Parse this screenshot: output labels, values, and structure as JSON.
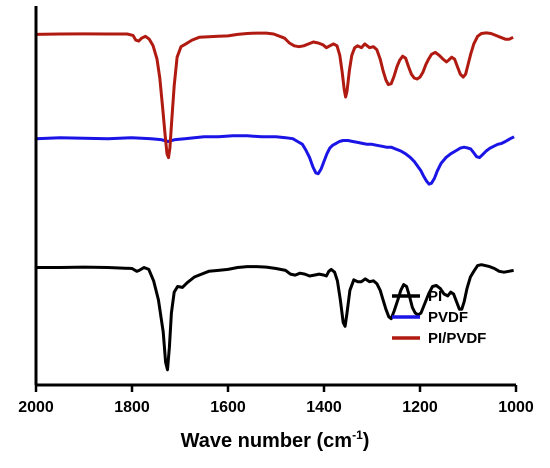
{
  "chart_data": {
    "type": "line",
    "title": "",
    "xlabel": "Wave number (cm",
    "xlabel_sup": "-1",
    "xlabel_tail": ")",
    "ylabel": "",
    "xlim": [
      2000,
      1000
    ],
    "x_reversed": true,
    "y_ticks_shown": false,
    "grid": false,
    "legend_position": "bottom-right",
    "x_ticks": [
      2000,
      1800,
      1600,
      1400,
      1200,
      1000
    ],
    "x_tick_labels": [
      "2000",
      "1800",
      "1600",
      "1400",
      "1200",
      "1000"
    ],
    "series": [
      {
        "name": "PI",
        "color": "#000000",
        "points": [
          [
            2000,
            0.62
          ],
          [
            1950,
            0.62
          ],
          [
            1900,
            0.622
          ],
          [
            1850,
            0.62
          ],
          [
            1800,
            0.615
          ],
          [
            1790,
            0.6
          ],
          [
            1785,
            0.605
          ],
          [
            1775,
            0.62
          ],
          [
            1765,
            0.61
          ],
          [
            1755,
            0.55
          ],
          [
            1745,
            0.45
          ],
          [
            1735,
            0.28
          ],
          [
            1730,
            0.12
          ],
          [
            1726,
            0.08
          ],
          [
            1722,
            0.2
          ],
          [
            1718,
            0.38
          ],
          [
            1712,
            0.49
          ],
          [
            1705,
            0.52
          ],
          [
            1695,
            0.515
          ],
          [
            1685,
            0.54
          ],
          [
            1670,
            0.57
          ],
          [
            1655,
            0.585
          ],
          [
            1640,
            0.6
          ],
          [
            1620,
            0.605
          ],
          [
            1600,
            0.61
          ],
          [
            1580,
            0.62
          ],
          [
            1560,
            0.625
          ],
          [
            1540,
            0.625
          ],
          [
            1520,
            0.622
          ],
          [
            1500,
            0.615
          ],
          [
            1480,
            0.605
          ],
          [
            1470,
            0.585
          ],
          [
            1460,
            0.58
          ],
          [
            1450,
            0.59
          ],
          [
            1440,
            0.585
          ],
          [
            1430,
            0.575
          ],
          [
            1420,
            0.58
          ],
          [
            1410,
            0.585
          ],
          [
            1400,
            0.58
          ],
          [
            1395,
            0.575
          ],
          [
            1390,
            0.6
          ],
          [
            1385,
            0.61
          ],
          [
            1378,
            0.595
          ],
          [
            1372,
            0.55
          ],
          [
            1366,
            0.45
          ],
          [
            1360,
            0.33
          ],
          [
            1356,
            0.31
          ],
          [
            1352,
            0.38
          ],
          [
            1346,
            0.5
          ],
          [
            1338,
            0.555
          ],
          [
            1330,
            0.545
          ],
          [
            1322,
            0.545
          ],
          [
            1314,
            0.56
          ],
          [
            1305,
            0.545
          ],
          [
            1297,
            0.55
          ],
          [
            1290,
            0.535
          ],
          [
            1283,
            0.5
          ],
          [
            1277,
            0.45
          ],
          [
            1271,
            0.4
          ],
          [
            1265,
            0.36
          ],
          [
            1260,
            0.35
          ],
          [
            1254,
            0.39
          ],
          [
            1246,
            0.45
          ],
          [
            1240,
            0.5
          ],
          [
            1234,
            0.53
          ],
          [
            1228,
            0.52
          ],
          [
            1222,
            0.47
          ],
          [
            1216,
            0.41
          ],
          [
            1210,
            0.38
          ],
          [
            1204,
            0.37
          ],
          [
            1198,
            0.38
          ],
          [
            1190,
            0.43
          ],
          [
            1182,
            0.48
          ],
          [
            1174,
            0.52
          ],
          [
            1166,
            0.525
          ],
          [
            1158,
            0.51
          ],
          [
            1150,
            0.48
          ],
          [
            1142,
            0.47
          ],
          [
            1136,
            0.49
          ],
          [
            1130,
            0.48
          ],
          [
            1124,
            0.44
          ],
          [
            1118,
            0.4
          ],
          [
            1113,
            0.4
          ],
          [
            1108,
            0.44
          ],
          [
            1102,
            0.51
          ],
          [
            1095,
            0.57
          ],
          [
            1088,
            0.6
          ],
          [
            1080,
            0.63
          ],
          [
            1072,
            0.635
          ],
          [
            1064,
            0.63
          ],
          [
            1055,
            0.625
          ],
          [
            1045,
            0.615
          ],
          [
            1035,
            0.6
          ],
          [
            1025,
            0.595
          ],
          [
            1015,
            0.6
          ],
          [
            1005,
            0.605
          ]
        ]
      },
      {
        "name": "PVDF",
        "color": "#1a14e6",
        "points": [
          [
            2000,
            1.3
          ],
          [
            1950,
            1.305
          ],
          [
            1900,
            1.302
          ],
          [
            1850,
            1.3
          ],
          [
            1800,
            1.305
          ],
          [
            1760,
            1.3
          ],
          [
            1740,
            1.295
          ],
          [
            1725,
            1.285
          ],
          [
            1710,
            1.295
          ],
          [
            1690,
            1.3
          ],
          [
            1670,
            1.305
          ],
          [
            1650,
            1.31
          ],
          [
            1620,
            1.31
          ],
          [
            1590,
            1.315
          ],
          [
            1560,
            1.315
          ],
          [
            1530,
            1.31
          ],
          [
            1500,
            1.31
          ],
          [
            1480,
            1.305
          ],
          [
            1465,
            1.3
          ],
          [
            1455,
            1.285
          ],
          [
            1445,
            1.27
          ],
          [
            1438,
            1.24
          ],
          [
            1430,
            1.2
          ],
          [
            1423,
            1.15
          ],
          [
            1417,
            1.12
          ],
          [
            1412,
            1.115
          ],
          [
            1406,
            1.14
          ],
          [
            1400,
            1.18
          ],
          [
            1394,
            1.22
          ],
          [
            1388,
            1.25
          ],
          [
            1382,
            1.265
          ],
          [
            1375,
            1.275
          ],
          [
            1368,
            1.285
          ],
          [
            1360,
            1.29
          ],
          [
            1350,
            1.29
          ],
          [
            1340,
            1.285
          ],
          [
            1330,
            1.28
          ],
          [
            1320,
            1.275
          ],
          [
            1310,
            1.27
          ],
          [
            1300,
            1.27
          ],
          [
            1290,
            1.265
          ],
          [
            1280,
            1.26
          ],
          [
            1270,
            1.255
          ],
          [
            1260,
            1.255
          ],
          [
            1250,
            1.245
          ],
          [
            1240,
            1.235
          ],
          [
            1230,
            1.22
          ],
          [
            1220,
            1.2
          ],
          [
            1212,
            1.18
          ],
          [
            1205,
            1.155
          ],
          [
            1198,
            1.13
          ],
          [
            1192,
            1.1
          ],
          [
            1186,
            1.075
          ],
          [
            1181,
            1.06
          ],
          [
            1176,
            1.065
          ],
          [
            1170,
            1.09
          ],
          [
            1164,
            1.13
          ],
          [
            1156,
            1.17
          ],
          [
            1146,
            1.2
          ],
          [
            1136,
            1.22
          ],
          [
            1126,
            1.235
          ],
          [
            1116,
            1.25
          ],
          [
            1108,
            1.255
          ],
          [
            1100,
            1.25
          ],
          [
            1094,
            1.245
          ],
          [
            1088,
            1.225
          ],
          [
            1082,
            1.205
          ],
          [
            1076,
            1.2
          ],
          [
            1070,
            1.215
          ],
          [
            1062,
            1.235
          ],
          [
            1054,
            1.25
          ],
          [
            1046,
            1.26
          ],
          [
            1038,
            1.27
          ],
          [
            1030,
            1.275
          ],
          [
            1022,
            1.285
          ],
          [
            1012,
            1.3
          ],
          [
            1004,
            1.31
          ]
        ]
      },
      {
        "name": "PI/PVDF",
        "color": "#b01a10",
        "points": [
          [
            2000,
            1.85
          ],
          [
            1950,
            1.852
          ],
          [
            1900,
            1.853
          ],
          [
            1850,
            1.852
          ],
          [
            1810,
            1.852
          ],
          [
            1798,
            1.845
          ],
          [
            1792,
            1.82
          ],
          [
            1786,
            1.815
          ],
          [
            1780,
            1.83
          ],
          [
            1772,
            1.84
          ],
          [
            1764,
            1.825
          ],
          [
            1756,
            1.79
          ],
          [
            1748,
            1.72
          ],
          [
            1742,
            1.62
          ],
          [
            1736,
            1.46
          ],
          [
            1731,
            1.32
          ],
          [
            1727,
            1.22
          ],
          [
            1724,
            1.2
          ],
          [
            1721,
            1.25
          ],
          [
            1717,
            1.4
          ],
          [
            1712,
            1.58
          ],
          [
            1706,
            1.73
          ],
          [
            1698,
            1.785
          ],
          [
            1688,
            1.8
          ],
          [
            1675,
            1.82
          ],
          [
            1660,
            1.835
          ],
          [
            1640,
            1.838
          ],
          [
            1620,
            1.84
          ],
          [
            1600,
            1.842
          ],
          [
            1580,
            1.85
          ],
          [
            1560,
            1.855
          ],
          [
            1540,
            1.857
          ],
          [
            1520,
            1.857
          ],
          [
            1505,
            1.852
          ],
          [
            1492,
            1.84
          ],
          [
            1482,
            1.83
          ],
          [
            1472,
            1.805
          ],
          [
            1462,
            1.79
          ],
          [
            1452,
            1.785
          ],
          [
            1442,
            1.79
          ],
          [
            1432,
            1.8
          ],
          [
            1422,
            1.81
          ],
          [
            1412,
            1.805
          ],
          [
            1402,
            1.795
          ],
          [
            1395,
            1.78
          ],
          [
            1388,
            1.79
          ],
          [
            1380,
            1.8
          ],
          [
            1373,
            1.79
          ],
          [
            1367,
            1.74
          ],
          [
            1362,
            1.65
          ],
          [
            1358,
            1.56
          ],
          [
            1355,
            1.52
          ],
          [
            1352,
            1.55
          ],
          [
            1347,
            1.66
          ],
          [
            1342,
            1.74
          ],
          [
            1336,
            1.78
          ],
          [
            1330,
            1.79
          ],
          [
            1322,
            1.78
          ],
          [
            1315,
            1.8
          ],
          [
            1305,
            1.78
          ],
          [
            1297,
            1.785
          ],
          [
            1290,
            1.77
          ],
          [
            1283,
            1.72
          ],
          [
            1277,
            1.66
          ],
          [
            1271,
            1.61
          ],
          [
            1266,
            1.585
          ],
          [
            1260,
            1.59
          ],
          [
            1254,
            1.63
          ],
          [
            1248,
            1.68
          ],
          [
            1242,
            1.715
          ],
          [
            1236,
            1.735
          ],
          [
            1230,
            1.725
          ],
          [
            1224,
            1.68
          ],
          [
            1218,
            1.64
          ],
          [
            1212,
            1.62
          ],
          [
            1206,
            1.615
          ],
          [
            1200,
            1.625
          ],
          [
            1194,
            1.65
          ],
          [
            1188,
            1.69
          ],
          [
            1182,
            1.72
          ],
          [
            1176,
            1.745
          ],
          [
            1168,
            1.755
          ],
          [
            1160,
            1.74
          ],
          [
            1152,
            1.72
          ],
          [
            1145,
            1.705
          ],
          [
            1140,
            1.715
          ],
          [
            1134,
            1.73
          ],
          [
            1128,
            1.72
          ],
          [
            1122,
            1.68
          ],
          [
            1116,
            1.64
          ],
          [
            1110,
            1.625
          ],
          [
            1105,
            1.64
          ],
          [
            1100,
            1.69
          ],
          [
            1094,
            1.75
          ],
          [
            1088,
            1.8
          ],
          [
            1080,
            1.84
          ],
          [
            1072,
            1.855
          ],
          [
            1062,
            1.858
          ],
          [
            1052,
            1.855
          ],
          [
            1042,
            1.845
          ],
          [
            1032,
            1.835
          ],
          [
            1022,
            1.825
          ],
          [
            1014,
            1.825
          ],
          [
            1006,
            1.835
          ]
        ]
      }
    ]
  }
}
